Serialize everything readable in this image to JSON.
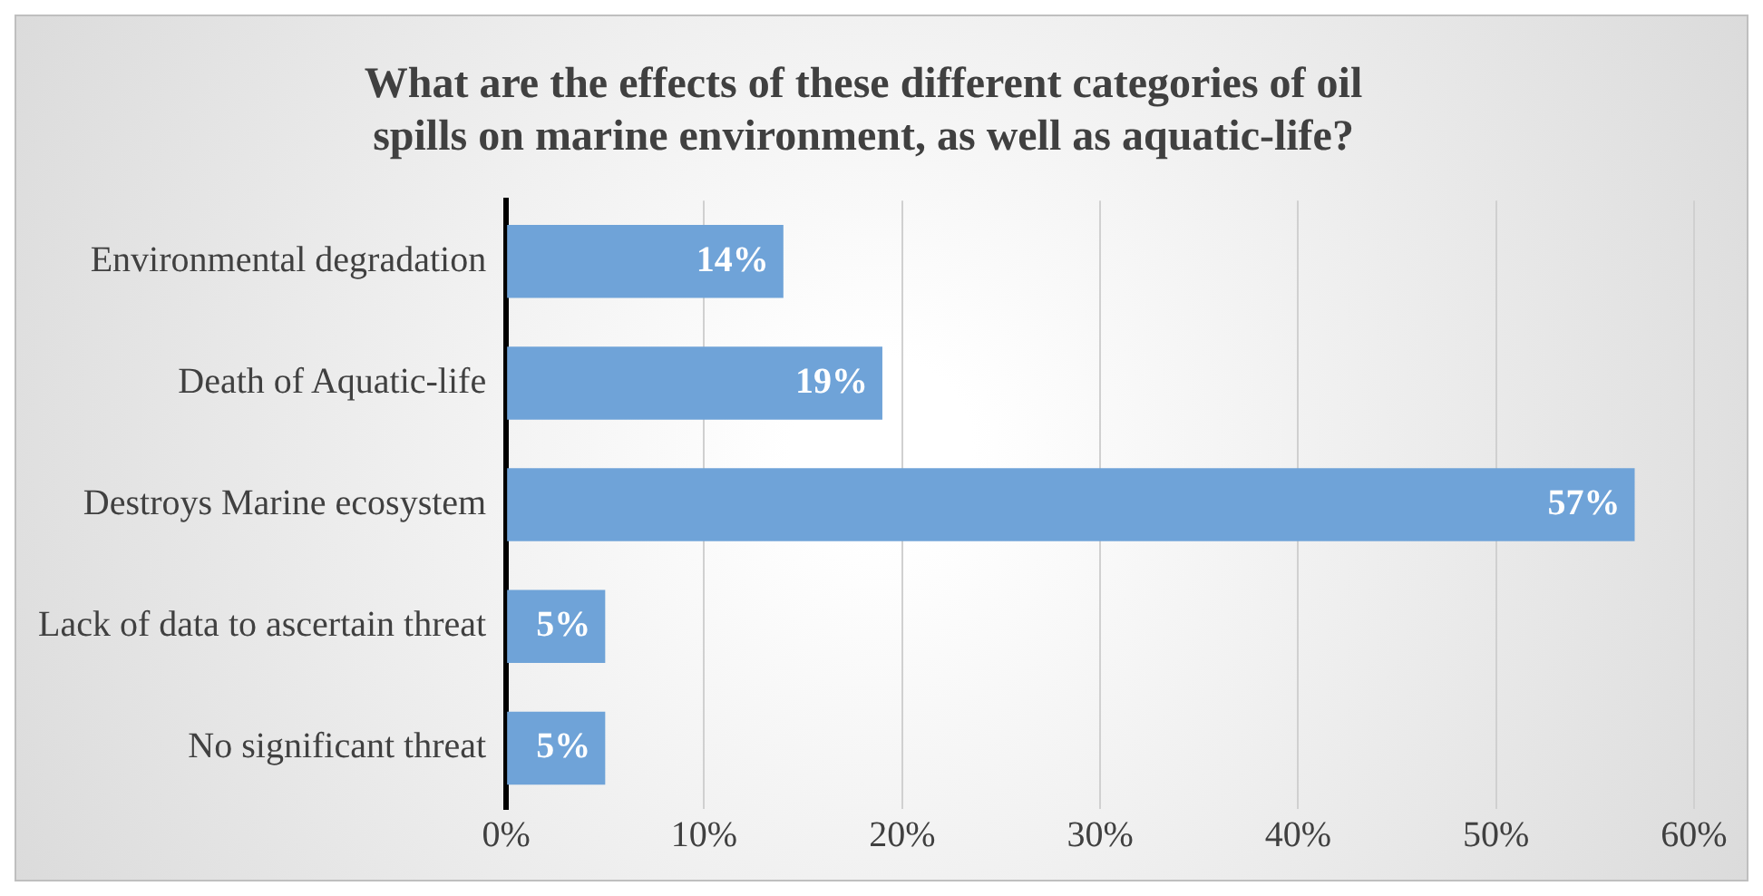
{
  "chart_data": {
    "type": "bar",
    "orientation": "horizontal",
    "title": "What are the effects of these different categories of oil spills on marine environment, as well as aquatic-life?",
    "categories": [
      "Environmental degradation",
      "Death of Aquatic-life",
      "Destroys Marine ecosystem",
      "Lack of data to ascertain threat",
      "No significant threat"
    ],
    "values": [
      14,
      19,
      57,
      5,
      5
    ],
    "color": "#6fa3d8",
    "value_labels": [
      "14%",
      "19%",
      "57%",
      "5%",
      "5%"
    ],
    "xlim": [
      0,
      60
    ],
    "xticks": [
      {
        "value": 0,
        "label": "0%"
      },
      {
        "value": 10,
        "label": "10%"
      },
      {
        "value": 20,
        "label": "20%"
      },
      {
        "value": 30,
        "label": "30%"
      },
      {
        "value": 40,
        "label": "40%"
      },
      {
        "value": 50,
        "label": "50%"
      },
      {
        "value": 60,
        "label": "60%"
      }
    ],
    "grid": "x",
    "legend": false
  }
}
